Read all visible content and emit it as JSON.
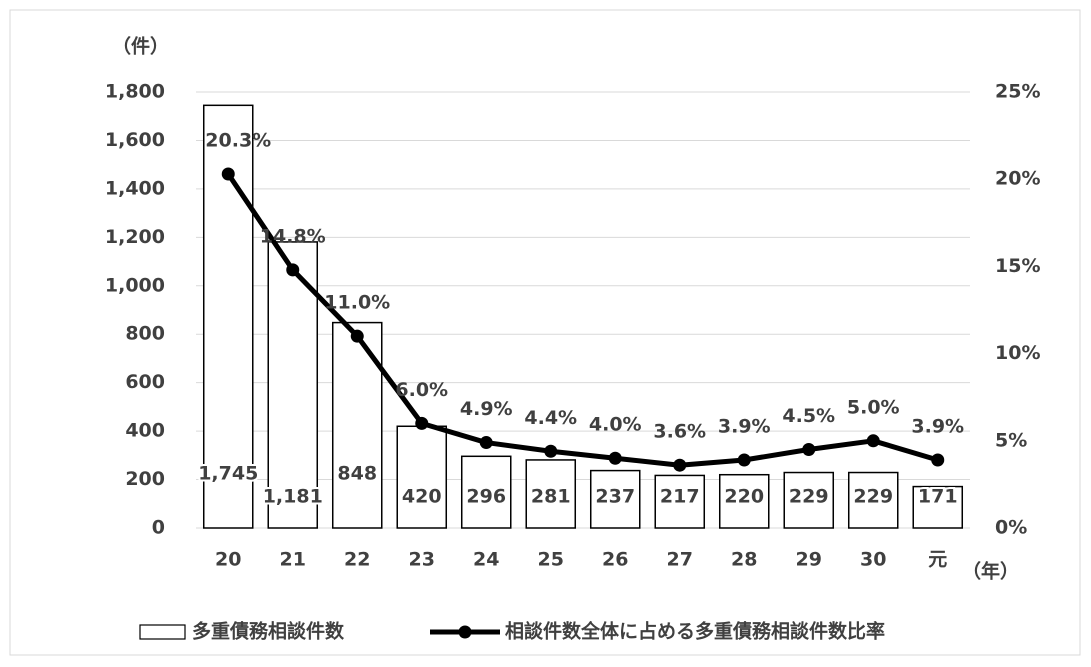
{
  "chart_data": {
    "type": "bar",
    "y_label": "（件）",
    "x_label": "（年）",
    "categories": [
      "20",
      "21",
      "22",
      "23",
      "24",
      "25",
      "26",
      "27",
      "28",
      "29",
      "30",
      "元"
    ],
    "series": [
      {
        "name": "多重債務相談件数",
        "type": "bar",
        "color": "#ffffff",
        "edge_color": "#000000",
        "values": [
          1745,
          1181,
          848,
          420,
          296,
          281,
          237,
          217,
          220,
          229,
          229,
          171
        ],
        "value_labels": [
          "1,745",
          "1,181",
          "848",
          "420",
          "296",
          "281",
          "237",
          "217",
          "220",
          "229",
          "229",
          "171"
        ]
      },
      {
        "name": "相談件数全体に占める多重債務相談件数比率",
        "type": "line",
        "axis": "y2",
        "color": "#000000",
        "values": [
          20.3,
          14.8,
          11.0,
          6.0,
          4.9,
          4.4,
          4.0,
          3.6,
          3.9,
          4.5,
          5.0,
          3.9
        ],
        "value_labels": [
          "20.3%",
          "14.8%",
          "11.0%",
          "6.0%",
          "4.9%",
          "4.4%",
          "4.0%",
          "3.6%",
          "3.9%",
          "4.5%",
          "5.0%",
          "3.9%"
        ]
      }
    ],
    "ylim": [
      0,
      1800
    ],
    "yticks": [
      0,
      200,
      400,
      600,
      800,
      {
        "value": 1000,
        "label": "1,000"
      },
      {
        "value": 1200,
        "label": "1,200"
      },
      {
        "value": 1400,
        "label": "1,400"
      },
      {
        "value": 1600,
        "label": "1,600"
      },
      {
        "value": 1800,
        "label": "1,800"
      }
    ],
    "y2lim": [
      0,
      25
    ],
    "y2ticks": [
      {
        "value": 0,
        "label": "0%"
      },
      {
        "value": 5,
        "label": "5%"
      },
      {
        "value": 10,
        "label": "10%"
      },
      {
        "value": 15,
        "label": "15%"
      },
      {
        "value": 20,
        "label": "20%"
      },
      {
        "value": 25,
        "label": "25%"
      }
    ],
    "grid": true,
    "legend": "bottom"
  }
}
